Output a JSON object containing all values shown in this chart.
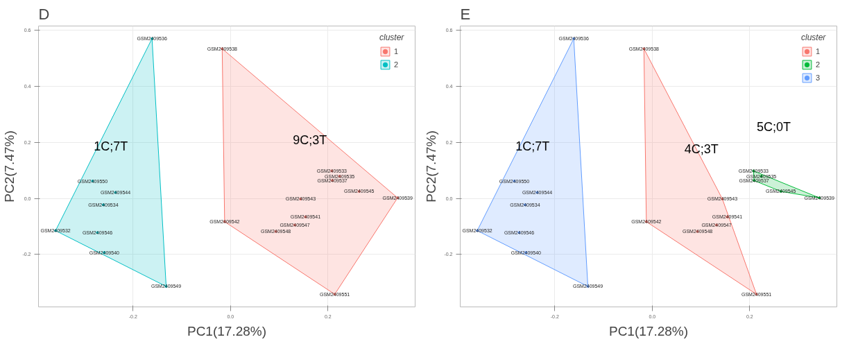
{
  "chart_data": [
    {
      "type": "scatter",
      "title": "D",
      "xlabel": "PC1(17.28%)",
      "ylabel": "PC2(7.47%)",
      "legend_title": "cluster",
      "legend": "top right",
      "grid": true,
      "marker": "circle",
      "xlim": [
        -0.394,
        0.379
      ],
      "ylim": [
        -0.387,
        0.615
      ],
      "xticks": [
        {
          "value": -0.2,
          "label": "-0.2"
        },
        {
          "value": 0,
          "label": "0.0"
        },
        {
          "value": 0.2,
          "label": "0.2"
        }
      ],
      "yticks": [
        {
          "value": -0.2,
          "label": "-0.2"
        },
        {
          "value": 0,
          "label": "0.0"
        },
        {
          "value": 0.2,
          "label": "0.2"
        },
        {
          "value": 0.4,
          "label": "0.4"
        },
        {
          "value": 0.6,
          "label": "0.6"
        }
      ],
      "series": [
        {
          "name": "1",
          "color": "#f8766d",
          "x": [
            -0.017,
            0.208,
            0.224,
            0.209,
            0.264,
            0.343,
            0.144,
            0.154,
            -0.012,
            0.132,
            0.093,
            0.214
          ],
          "values": [
            0.534,
            0.098,
            0.079,
            0.064,
            0.025,
            0.002,
            -0.002,
            -0.066,
            -0.083,
            -0.095,
            -0.118,
            -0.342
          ],
          "value_labels": [
            "GSM2409538",
            "GSM2409533",
            "GSM2409535",
            "GSM2409537",
            "GSM2409545",
            "GSM2409539",
            "GSM2409543",
            "GSM2409541",
            "GSM2409542",
            "GSM2409547",
            "GSM2409548",
            "GSM2409551"
          ]
        },
        {
          "name": "2",
          "color": "#00bfc4",
          "x": [
            -0.161,
            -0.283,
            -0.236,
            -0.261,
            -0.359,
            -0.273,
            -0.259,
            -0.132
          ],
          "values": [
            0.57,
            0.062,
            0.021,
            -0.023,
            -0.115,
            -0.122,
            -0.193,
            -0.314
          ],
          "value_labels": [
            "GSM2409536",
            "GSM2409550",
            "GSM2409544",
            "GSM2409534",
            "GSM2409532",
            "GSM2409546",
            "GSM2409540",
            "GSM2409549"
          ]
        }
      ],
      "annotations": [
        "1C;7T",
        "9C;3T"
      ]
    },
    {
      "type": "scatter",
      "title": "E",
      "xlabel": "PC1(17.28%)",
      "ylabel": "PC2(7.47%)",
      "legend_title": "cluster",
      "legend": "top right",
      "grid": true,
      "marker": "circle",
      "xlim": [
        -0.394,
        0.379
      ],
      "ylim": [
        -0.387,
        0.615
      ],
      "xticks": [
        {
          "value": -0.2,
          "label": "-0.2"
        },
        {
          "value": 0,
          "label": "0.0"
        },
        {
          "value": 0.2,
          "label": "0.2"
        }
      ],
      "yticks": [
        {
          "value": -0.2,
          "label": "-0.2"
        },
        {
          "value": 0,
          "label": "0.0"
        },
        {
          "value": 0.2,
          "label": "0.2"
        },
        {
          "value": 0.4,
          "label": "0.4"
        },
        {
          "value": 0.6,
          "label": "0.6"
        }
      ],
      "series": [
        {
          "name": "1",
          "color": "#f8766d",
          "x": [
            -0.017,
            0.144,
            0.154,
            -0.012,
            0.132,
            0.093,
            0.214
          ],
          "values": [
            0.534,
            -0.002,
            -0.066,
            -0.083,
            -0.095,
            -0.118,
            -0.342
          ],
          "value_labels": [
            "GSM2409538",
            "GSM2409543",
            "GSM2409541",
            "GSM2409542",
            "GSM2409547",
            "GSM2409548",
            "GSM2409551"
          ]
        },
        {
          "name": "2",
          "color": "#00ba38",
          "x": [
            0.208,
            0.224,
            0.209,
            0.264,
            0.343
          ],
          "values": [
            0.098,
            0.079,
            0.064,
            0.025,
            0.002
          ],
          "value_labels": [
            "GSM2409533",
            "GSM2409535",
            "GSM2409537",
            "GSM2409545",
            "GSM2409539"
          ]
        },
        {
          "name": "3",
          "color": "#619cff",
          "x": [
            -0.161,
            -0.283,
            -0.236,
            -0.261,
            -0.359,
            -0.273,
            -0.259,
            -0.132
          ],
          "values": [
            0.57,
            0.062,
            0.021,
            -0.023,
            -0.115,
            -0.122,
            -0.193,
            -0.314
          ],
          "value_labels": [
            "GSM2409536",
            "GSM2409550",
            "GSM2409544",
            "GSM2409534",
            "GSM2409532",
            "GSM2409546",
            "GSM2409540",
            "GSM2409549"
          ]
        }
      ],
      "annotations": [
        "1C;7T",
        "4C;3T",
        "5C;0T"
      ]
    }
  ]
}
